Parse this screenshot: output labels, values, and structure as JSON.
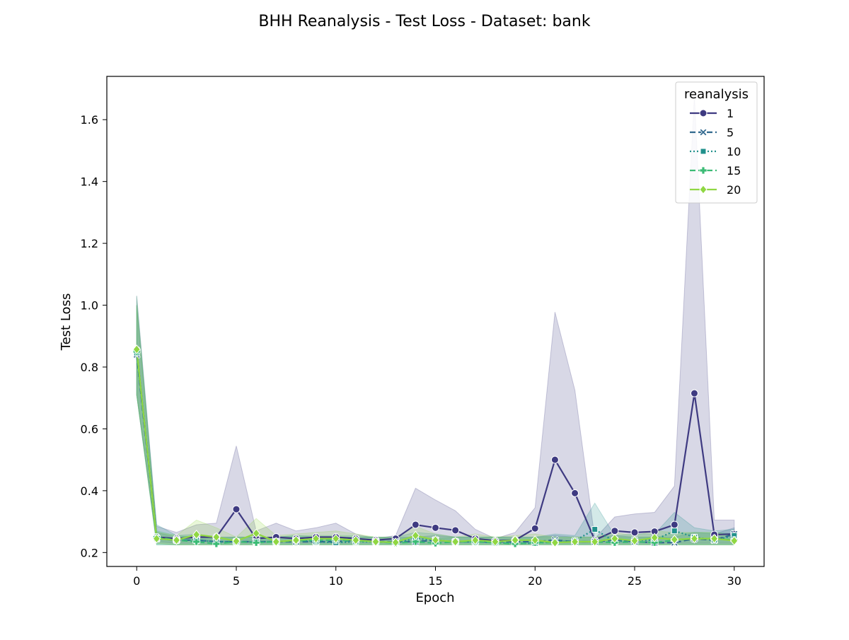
{
  "chart_data": {
    "type": "line",
    "title": "BHH Reanalysis - Test Loss - Dataset: bank",
    "xlabel": "Epoch",
    "ylabel": "Test Loss",
    "xlim": [
      -1.5,
      31.5
    ],
    "ylim": [
      0.155,
      1.74
    ],
    "xticks": [
      0,
      5,
      10,
      15,
      20,
      25,
      30
    ],
    "yticks": [
      0.2,
      0.4,
      0.6,
      0.8,
      1.0,
      1.2,
      1.4,
      1.6
    ],
    "ytick_labels": [
      "0.2",
      "0.4",
      "0.6",
      "0.8",
      "1.0",
      "1.2",
      "1.4",
      "1.6"
    ],
    "grid": false,
    "legend": {
      "title": "reanalysis",
      "placement": "top-right"
    },
    "x": [
      0,
      1,
      2,
      3,
      4,
      5,
      6,
      7,
      8,
      9,
      10,
      11,
      12,
      13,
      14,
      15,
      16,
      17,
      18,
      19,
      20,
      21,
      22,
      23,
      24,
      25,
      26,
      27,
      28,
      29,
      30
    ],
    "series": [
      {
        "name": "1",
        "color": "#3e3a81",
        "dash": "solid",
        "marker": "circle",
        "values": [
          0.855,
          0.25,
          0.245,
          0.25,
          0.25,
          0.34,
          0.245,
          0.25,
          0.245,
          0.25,
          0.25,
          0.245,
          0.24,
          0.245,
          0.29,
          0.28,
          0.272,
          0.245,
          0.238,
          0.24,
          0.278,
          0.5,
          0.392,
          0.24,
          0.27,
          0.265,
          0.268,
          0.29,
          0.715,
          0.258,
          0.26
        ],
        "lower": [
          0.71,
          0.235,
          0.23,
          0.23,
          0.23,
          0.23,
          0.23,
          0.23,
          0.23,
          0.23,
          0.23,
          0.23,
          0.23,
          0.23,
          0.23,
          0.23,
          0.23,
          0.23,
          0.23,
          0.23,
          0.23,
          0.23,
          0.23,
          0.23,
          0.23,
          0.23,
          0.23,
          0.23,
          0.23,
          0.23,
          0.23
        ],
        "upper": [
          1.03,
          0.285,
          0.265,
          0.29,
          0.295,
          0.545,
          0.27,
          0.295,
          0.27,
          0.28,
          0.295,
          0.26,
          0.245,
          0.255,
          0.408,
          0.37,
          0.335,
          0.275,
          0.245,
          0.265,
          0.345,
          0.978,
          0.725,
          0.245,
          0.315,
          0.325,
          0.33,
          0.415,
          1.68,
          0.305,
          0.305
        ],
        "band_color": "#3e3a81"
      },
      {
        "name": "5",
        "color": "#30688e",
        "dash": "dashed",
        "marker": "x",
        "values": [
          0.84,
          0.245,
          0.24,
          0.24,
          0.235,
          0.235,
          0.235,
          0.235,
          0.235,
          0.235,
          0.235,
          0.24,
          0.235,
          0.235,
          0.235,
          0.24,
          0.235,
          0.235,
          0.235,
          0.235,
          0.235,
          0.24,
          0.235,
          0.235,
          0.24,
          0.235,
          0.232,
          0.232,
          0.245,
          0.24,
          0.26
        ],
        "lower": [
          0.71,
          0.23,
          0.225,
          0.225,
          0.225,
          0.225,
          0.225,
          0.225,
          0.225,
          0.225,
          0.225,
          0.225,
          0.225,
          0.225,
          0.225,
          0.225,
          0.225,
          0.225,
          0.225,
          0.225,
          0.225,
          0.225,
          0.225,
          0.225,
          0.225,
          0.225,
          0.225,
          0.225,
          0.225,
          0.225,
          0.225
        ],
        "upper": [
          1.0,
          0.265,
          0.25,
          0.255,
          0.25,
          0.25,
          0.25,
          0.25,
          0.25,
          0.25,
          0.25,
          0.25,
          0.25,
          0.25,
          0.25,
          0.255,
          0.25,
          0.25,
          0.25,
          0.25,
          0.25,
          0.255,
          0.25,
          0.25,
          0.255,
          0.25,
          0.25,
          0.25,
          0.265,
          0.26,
          0.28
        ],
        "band_color": "#30688e"
      },
      {
        "name": "10",
        "color": "#21918c",
        "dash": "dotted",
        "marker": "square",
        "values": [
          0.845,
          0.245,
          0.24,
          0.24,
          0.235,
          0.235,
          0.235,
          0.235,
          0.24,
          0.235,
          0.232,
          0.235,
          0.235,
          0.232,
          0.245,
          0.24,
          0.235,
          0.235,
          0.232,
          0.23,
          0.23,
          0.235,
          0.238,
          0.275,
          0.235,
          0.24,
          0.24,
          0.27,
          0.25,
          0.24,
          0.255
        ],
        "lower": [
          0.71,
          0.225,
          0.225,
          0.225,
          0.225,
          0.225,
          0.225,
          0.225,
          0.225,
          0.225,
          0.225,
          0.225,
          0.225,
          0.225,
          0.225,
          0.225,
          0.225,
          0.225,
          0.225,
          0.225,
          0.225,
          0.225,
          0.225,
          0.225,
          0.225,
          0.225,
          0.225,
          0.225,
          0.225,
          0.225,
          0.225
        ],
        "upper": [
          1.0,
          0.29,
          0.255,
          0.26,
          0.25,
          0.25,
          0.25,
          0.25,
          0.255,
          0.25,
          0.25,
          0.25,
          0.25,
          0.25,
          0.265,
          0.26,
          0.25,
          0.25,
          0.25,
          0.25,
          0.25,
          0.26,
          0.255,
          0.36,
          0.255,
          0.26,
          0.26,
          0.33,
          0.28,
          0.27,
          0.275
        ],
        "band_color": "#21918c"
      },
      {
        "name": "15",
        "color": "#3bbb75",
        "dash": "dashed",
        "marker": "plus",
        "values": [
          0.85,
          0.25,
          0.24,
          0.235,
          0.228,
          0.235,
          0.232,
          0.235,
          0.238,
          0.24,
          0.24,
          0.238,
          0.235,
          0.23,
          0.235,
          0.23,
          0.235,
          0.235,
          0.232,
          0.228,
          0.232,
          0.232,
          0.235,
          0.235,
          0.232,
          0.235,
          0.232,
          0.24,
          0.245,
          0.245,
          0.24
        ],
        "lower": [
          0.71,
          0.225,
          0.225,
          0.225,
          0.225,
          0.225,
          0.225,
          0.225,
          0.225,
          0.225,
          0.225,
          0.225,
          0.225,
          0.225,
          0.225,
          0.225,
          0.225,
          0.225,
          0.225,
          0.225,
          0.225,
          0.225,
          0.225,
          0.225,
          0.225,
          0.225,
          0.225,
          0.225,
          0.225,
          0.225,
          0.225
        ],
        "upper": [
          1.03,
          0.27,
          0.255,
          0.25,
          0.245,
          0.25,
          0.25,
          0.25,
          0.255,
          0.255,
          0.255,
          0.255,
          0.25,
          0.245,
          0.25,
          0.245,
          0.25,
          0.25,
          0.25,
          0.245,
          0.25,
          0.25,
          0.25,
          0.25,
          0.25,
          0.25,
          0.25,
          0.26,
          0.265,
          0.265,
          0.26
        ],
        "band_color": "#3bbb75"
      },
      {
        "name": "20",
        "color": "#90d743",
        "dash": "solid",
        "marker": "diamond",
        "values": [
          0.857,
          0.245,
          0.24,
          0.258,
          0.25,
          0.237,
          0.262,
          0.235,
          0.24,
          0.245,
          0.245,
          0.24,
          0.235,
          0.233,
          0.255,
          0.24,
          0.235,
          0.24,
          0.235,
          0.24,
          0.24,
          0.232,
          0.235,
          0.235,
          0.245,
          0.238,
          0.248,
          0.242,
          0.245,
          0.245,
          0.238
        ],
        "lower": [
          0.71,
          0.23,
          0.225,
          0.225,
          0.225,
          0.225,
          0.225,
          0.225,
          0.225,
          0.225,
          0.225,
          0.225,
          0.225,
          0.225,
          0.225,
          0.225,
          0.225,
          0.225,
          0.225,
          0.225,
          0.225,
          0.225,
          0.225,
          0.225,
          0.225,
          0.225,
          0.225,
          0.225,
          0.225,
          0.225,
          0.225
        ],
        "upper": [
          1.0,
          0.265,
          0.255,
          0.305,
          0.28,
          0.25,
          0.31,
          0.255,
          0.26,
          0.265,
          0.27,
          0.26,
          0.25,
          0.25,
          0.285,
          0.26,
          0.25,
          0.26,
          0.25,
          0.255,
          0.26,
          0.25,
          0.25,
          0.25,
          0.265,
          0.255,
          0.27,
          0.265,
          0.265,
          0.265,
          0.255
        ],
        "band_color": "#90d743"
      }
    ]
  }
}
